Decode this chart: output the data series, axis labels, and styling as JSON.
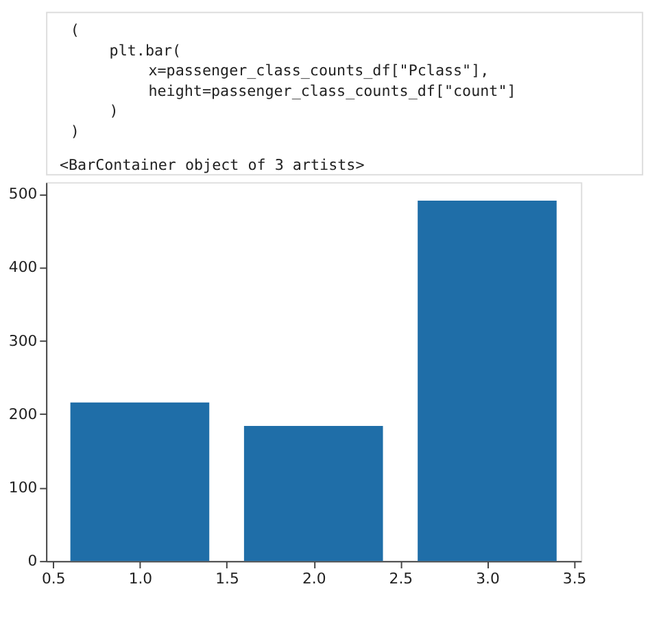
{
  "chart_data": {
    "type": "bar",
    "annotations": [
      "(",
      "    plt.bar(",
      "        x=passenger_class_counts_df[\"Pclass\"],",
      "        height=passenger_class_counts_df[\"count\"]",
      "    )",
      ")",
      "<BarContainer object of 3 artists>"
    ],
    "x": [
      1,
      2,
      3
    ],
    "values": [
      216,
      184,
      491
    ],
    "color": "#1f6ea8",
    "xlim": [
      0.46,
      3.54
    ],
    "xticks": [
      0.5,
      {
        "value": 1,
        "label": "1.0"
      },
      1.5,
      {
        "value": 2,
        "label": "2.0"
      },
      2.5,
      {
        "value": 3,
        "label": "3.0"
      },
      3.5
    ],
    "ylim": [
      0,
      516
    ],
    "yticks": [
      0,
      100,
      200,
      300,
      400,
      500
    ],
    "grid": false
  }
}
